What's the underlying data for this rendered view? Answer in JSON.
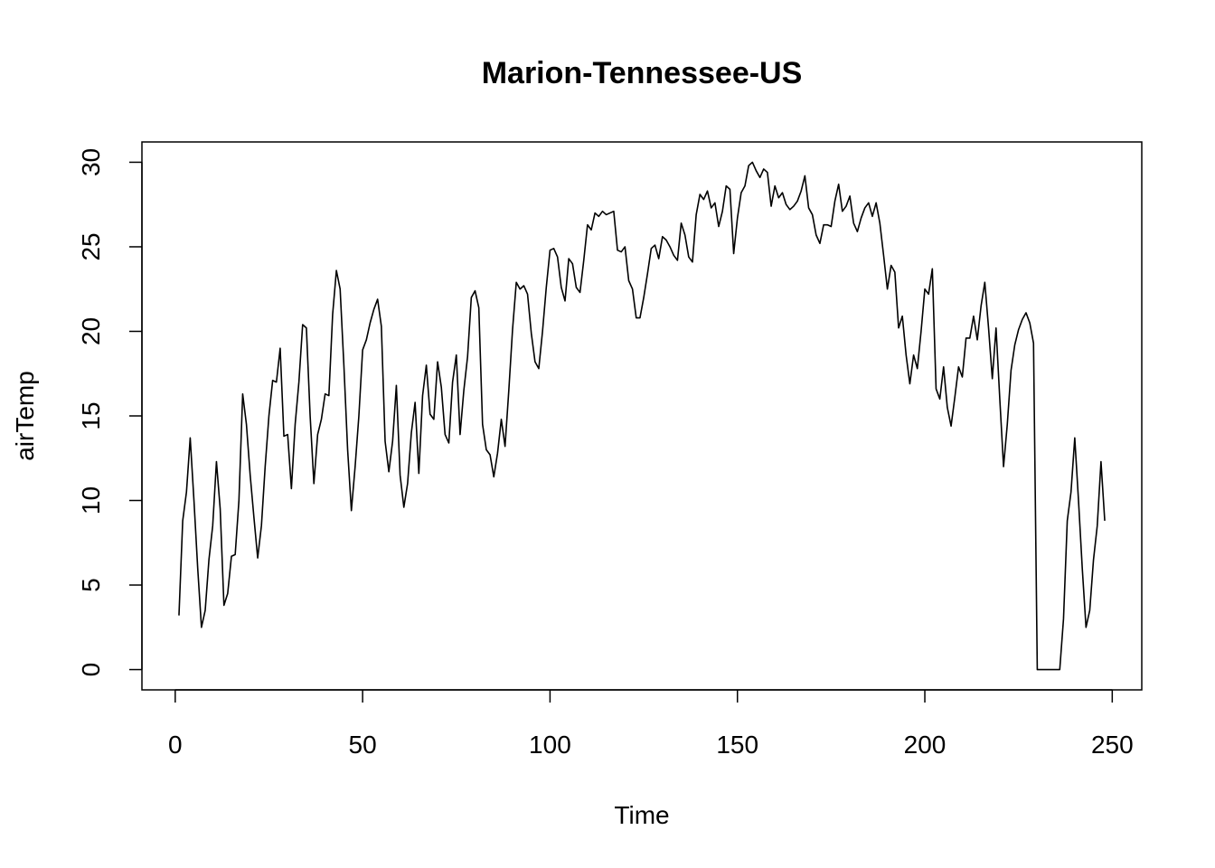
{
  "chart_data": {
    "type": "line",
    "title": "Marion-Tennessee-US",
    "x_label": "Time",
    "y_label": "airTemp",
    "color": "#000000",
    "xlim": [
      -8.88,
      257.88
    ],
    "ylim": [
      -1.2,
      31.2
    ],
    "xticks": [
      0,
      50,
      100,
      150,
      200,
      250
    ],
    "yticks": [
      0,
      5,
      10,
      15,
      20,
      25,
      30
    ],
    "x": [
      1,
      2,
      3,
      4,
      5,
      6,
      7,
      8,
      9,
      10,
      11,
      12,
      13,
      14,
      15,
      16,
      17,
      18,
      19,
      20,
      21,
      22,
      23,
      24,
      25,
      26,
      27,
      28,
      29,
      30,
      31,
      32,
      33,
      34,
      35,
      36,
      37,
      38,
      39,
      40,
      41,
      42,
      43,
      44,
      45,
      46,
      47,
      48,
      49,
      50,
      51,
      52,
      53,
      54,
      55,
      56,
      57,
      58,
      59,
      60,
      61,
      62,
      63,
      64,
      65,
      66,
      67,
      68,
      69,
      70,
      71,
      72,
      73,
      74,
      75,
      76,
      77,
      78,
      79,
      80,
      81,
      82,
      83,
      84,
      85,
      86,
      87,
      88,
      89,
      90,
      91,
      92,
      93,
      94,
      95,
      96,
      97,
      98,
      99,
      100,
      101,
      102,
      103,
      104,
      105,
      106,
      107,
      108,
      109,
      110,
      111,
      112,
      113,
      114,
      115,
      116,
      117,
      118,
      119,
      120,
      121,
      122,
      123,
      124,
      125,
      126,
      127,
      128,
      129,
      130,
      131,
      132,
      133,
      134,
      135,
      136,
      137,
      138,
      139,
      140,
      141,
      142,
      143,
      144,
      145,
      146,
      147,
      148,
      149,
      150,
      151,
      152,
      153,
      154,
      155,
      156,
      157,
      158,
      159,
      160,
      161,
      162,
      163,
      164,
      165,
      166,
      167,
      168,
      169,
      170,
      171,
      172,
      173,
      174,
      175,
      176,
      177,
      178,
      179,
      180,
      181,
      182,
      183,
      184,
      185,
      186,
      187,
      188,
      189,
      190,
      191,
      192,
      193,
      194,
      195,
      196,
      197,
      198,
      199,
      200,
      201,
      202,
      203,
      204,
      205,
      206,
      207,
      208,
      209,
      210,
      211,
      212,
      213,
      214,
      215,
      216,
      217,
      218,
      219,
      220,
      221,
      222,
      223,
      224,
      225,
      226,
      227,
      228,
      229,
      230,
      231,
      232,
      233,
      234,
      235,
      236,
      237,
      238,
      239,
      240,
      241,
      242,
      243,
      244,
      245,
      246,
      247,
      248
    ],
    "values": [
      3.2,
      8.8,
      10.5,
      13.7,
      10,
      6,
      2.5,
      3.5,
      6.5,
      8.5,
      12.3,
      9.5,
      3.8,
      4.5,
      6.7,
      6.8,
      10,
      16.3,
      14.5,
      11.5,
      9,
      6.6,
      8.5,
      12,
      15,
      17.1,
      17,
      19,
      13.8,
      13.9,
      10.7,
      14.5,
      17,
      20.4,
      20.2,
      15,
      11,
      13.9,
      14.8,
      16.3,
      16.2,
      21,
      23.6,
      22.5,
      18,
      13,
      9.4,
      12,
      15,
      18.9,
      19.5,
      20.5,
      21.3,
      21.9,
      20.3,
      13.5,
      11.7,
      13.5,
      16.8,
      11.5,
      9.6,
      11,
      14,
      15.8,
      11.6,
      16.2,
      18,
      15.1,
      14.8,
      18.2,
      16.7,
      13.9,
      13.4,
      17,
      18.6,
      13.9,
      16.5,
      18.5,
      22,
      22.4,
      21.4,
      14.5,
      13,
      12.7,
      11.4,
      12.8,
      14.8,
      13.2,
      16.5,
      20.1,
      22.9,
      22.5,
      22.7,
      22.2,
      19.9,
      18.2,
      17.8,
      20,
      22.6,
      24.8,
      24.9,
      24.4,
      22.6,
      21.8,
      24.3,
      24,
      22.6,
      22.3,
      24.2,
      26.3,
      26,
      27,
      26.8,
      27.1,
      26.9,
      27,
      27.1,
      24.8,
      24.7,
      25,
      23,
      22.5,
      20.8,
      20.8,
      22,
      23.4,
      24.9,
      25.1,
      24.3,
      25.6,
      25.4,
      25,
      24.5,
      24.2,
      26.4,
      25.7,
      24.4,
      24.1,
      26.9,
      28.1,
      27.8,
      28.3,
      27.3,
      27.6,
      26.2,
      27.1,
      28.6,
      28.4,
      24.6,
      26.7,
      28.2,
      28.6,
      29.8,
      30,
      29.5,
      29.1,
      29.6,
      29.4,
      27.4,
      28.6,
      27.9,
      28.2,
      27.5,
      27.2,
      27.4,
      27.7,
      28.3,
      29.2,
      27.3,
      26.9,
      25.7,
      25.2,
      26.3,
      26.3,
      26.2,
      27.7,
      28.7,
      27.1,
      27.4,
      28,
      26.4,
      25.9,
      26.7,
      27.3,
      27.6,
      26.8,
      27.6,
      26.4,
      24.5,
      22.5,
      23.9,
      23.5,
      20.2,
      20.9,
      18.6,
      16.9,
      18.6,
      17.8,
      20,
      22.5,
      22.2,
      23.7,
      16.6,
      16,
      17.9,
      15.5,
      14.4,
      16.1,
      17.9,
      17.3,
      19.6,
      19.6,
      20.9,
      19.5,
      21.5,
      22.9,
      20.2,
      17.2,
      20.2,
      16,
      12,
      14.5,
      17.7,
      19.2,
      20.1,
      20.7,
      21.1,
      20.5,
      19.3,
      0,
      0,
      0,
      0,
      0,
      0,
      0,
      3,
      8.8,
      10.5,
      13.7,
      10,
      6,
      2.5,
      3.5,
      6.5,
      8.5,
      12.3,
      8.8
    ]
  }
}
